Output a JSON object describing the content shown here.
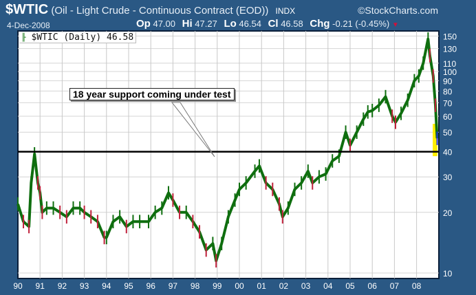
{
  "header": {
    "symbol": "$WTIC",
    "name": "(Oil - Light Crude - Continuous Contract (EOD))",
    "exchange": "INDX",
    "brand": "©StockCharts.com",
    "date": "4-Dec-2008",
    "open_label": "Op",
    "open": "47.00",
    "high_label": "Hi",
    "high": "47.27",
    "low_label": "Lo",
    "low": "46.54",
    "close_label": "Cl",
    "close": "46.58",
    "change_label": "Chg",
    "change": "-0.21 (-0.45%)",
    "change_icon": "down-triangle-icon"
  },
  "legend": {
    "icon": "ohlc-bar-icon",
    "text": "$WTIC (Daily) 46.58"
  },
  "annotation": {
    "text": "18 year support coming under test"
  },
  "chart_data": {
    "type": "line",
    "title": "$WTIC (Daily) 46.58",
    "y_scale": "log",
    "ylim": [
      9.7,
      155
    ],
    "xlim": [
      1990,
      2009
    ],
    "grid": true,
    "y_ticks": [
      10,
      20,
      30,
      40,
      50,
      60,
      70,
      80,
      90,
      100,
      110,
      130,
      150
    ],
    "x_tick_labels": [
      "90",
      "91",
      "92",
      "93",
      "94",
      "95",
      "96",
      "97",
      "98",
      "99",
      "00",
      "01",
      "02",
      "03",
      "04",
      "05",
      "06",
      "07",
      "08"
    ],
    "support_level": 40,
    "highlight_range": [
      38,
      55
    ],
    "colors": {
      "up": "#0f6e0f",
      "down": "#c0203a",
      "support": "#000000",
      "highlight": "#ffee00",
      "last": "#2233dd"
    },
    "x": [
      1990.0,
      1990.25,
      1990.5,
      1990.6,
      1990.75,
      1990.9,
      1991.0,
      1991.1,
      1991.3,
      1991.6,
      1991.9,
      1992.2,
      1992.5,
      1992.8,
      1993.0,
      1993.3,
      1993.6,
      1993.9,
      1994.0,
      1994.3,
      1994.6,
      1994.9,
      1995.2,
      1995.5,
      1995.9,
      1996.2,
      1996.5,
      1996.8,
      1997.0,
      1997.3,
      1997.6,
      1997.9,
      1998.2,
      1998.5,
      1998.8,
      1998.95,
      1999.2,
      1999.5,
      1999.8,
      2000.0,
      2000.3,
      2000.7,
      2000.9,
      2001.2,
      2001.5,
      2001.8,
      2001.95,
      2002.2,
      2002.5,
      2002.8,
      2003.1,
      2003.3,
      2003.6,
      2003.9,
      2004.2,
      2004.5,
      2004.8,
      2005.0,
      2005.3,
      2005.6,
      2005.8,
      2006.0,
      2006.3,
      2006.6,
      2006.9,
      2007.05,
      2007.3,
      2007.6,
      2007.9,
      2008.1,
      2008.3,
      2008.52,
      2008.6,
      2008.75,
      2008.85,
      2008.93
    ],
    "values": [
      22,
      18,
      17,
      28,
      39,
      28,
      25,
      20,
      21,
      21,
      20,
      19,
      21,
      21,
      20,
      19,
      18,
      15,
      15,
      18,
      19,
      17,
      18,
      18,
      18,
      20,
      21,
      25,
      23,
      20,
      20,
      18,
      16,
      13,
      14,
      11.5,
      14,
      19,
      23,
      26,
      28,
      32,
      34,
      28,
      26,
      22,
      19,
      21,
      26,
      28,
      32,
      28,
      30,
      31,
      36,
      38,
      50,
      43,
      50,
      58,
      63,
      64,
      68,
      75,
      60,
      56,
      62,
      72,
      90,
      95,
      110,
      145,
      120,
      95,
      68,
      46.58
    ]
  }
}
